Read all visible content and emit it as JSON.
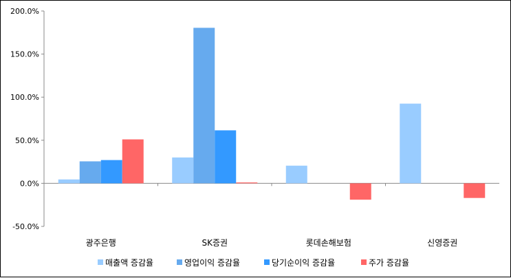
{
  "chart_data": {
    "type": "bar",
    "categories": [
      "광주은행",
      "SK증권",
      "롯데손해보험",
      "신영증권"
    ],
    "series": [
      {
        "name": "매출액 증감율",
        "color": "#99ccff",
        "values": [
          4.5,
          30.0,
          20.5,
          92.5
        ]
      },
      {
        "name": "영업이익 증감율",
        "color": "#66aaee",
        "values": [
          25.5,
          180.5,
          null,
          null
        ]
      },
      {
        "name": "당기순이익 증감율",
        "color": "#3399ff",
        "values": [
          27.0,
          61.5,
          null,
          null
        ]
      },
      {
        "name": "주가 증감율",
        "color": "#ff6666",
        "values": [
          51.0,
          1.0,
          -19.0,
          -17.0
        ]
      }
    ],
    "y_ticks": [
      "200.0%",
      "150.0%",
      "100.0%",
      "50.0%",
      "0.0%",
      "-50.0%"
    ],
    "ylim": [
      -50,
      200
    ],
    "title": "",
    "xlabel": "",
    "ylabel": "",
    "grid": false,
    "legend_position": "bottom"
  }
}
